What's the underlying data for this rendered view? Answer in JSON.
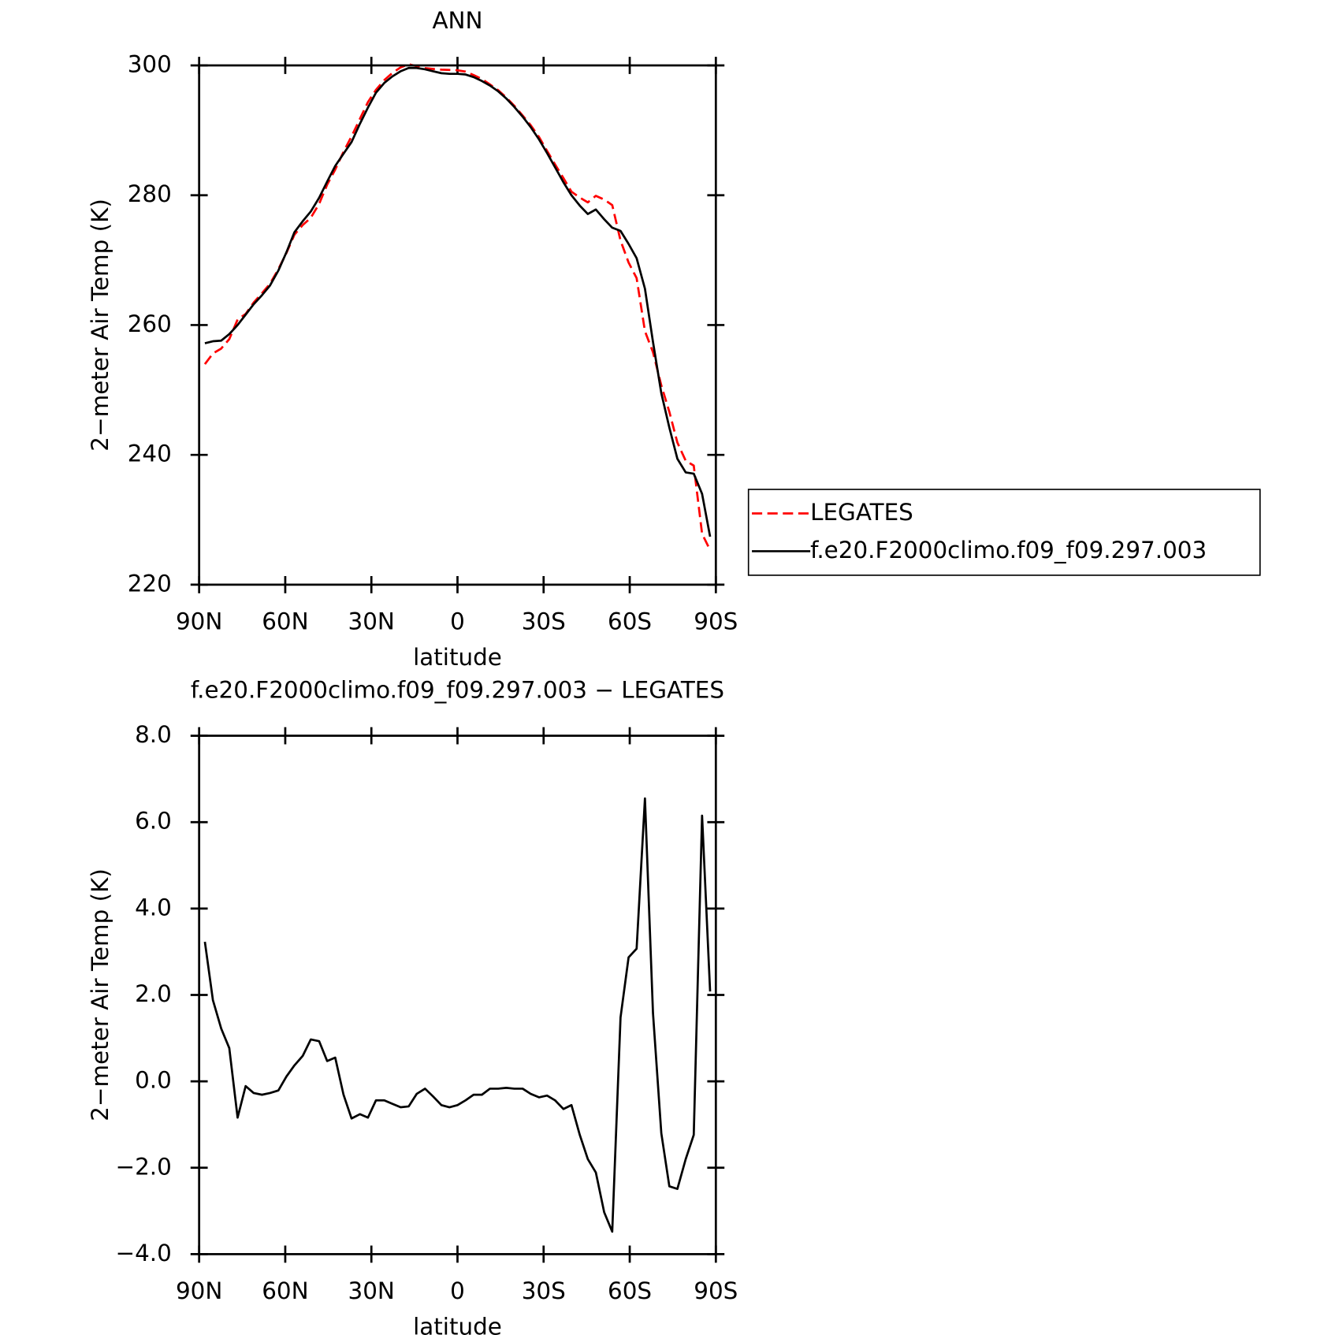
{
  "chart_data": [
    {
      "type": "line",
      "title": "ANN",
      "x_label": "latitude",
      "y_label": "2−meter Air Temp (K)",
      "x": [
        88.0,
        85.2,
        82.3,
        79.5,
        76.6,
        73.8,
        71.0,
        68.1,
        65.3,
        62.4,
        59.6,
        56.8,
        53.9,
        51.1,
        48.2,
        45.4,
        42.6,
        39.7,
        36.9,
        34.0,
        31.2,
        28.4,
        25.5,
        22.7,
        19.8,
        17.0,
        14.2,
        11.3,
        8.5,
        5.6,
        2.8,
        0.0,
        -2.8,
        -5.6,
        -8.5,
        -11.3,
        -14.2,
        -17.0,
        -19.8,
        -22.7,
        -25.5,
        -28.4,
        -31.2,
        -34.0,
        -36.9,
        -39.7,
        -42.6,
        -45.4,
        -48.2,
        -51.1,
        -53.9,
        -56.8,
        -59.6,
        -62.4,
        -65.3,
        -68.1,
        -71.0,
        -73.8,
        -76.6,
        -79.5,
        -82.3,
        -85.2,
        -88.0
      ],
      "series": [
        {
          "name": "LEGATES",
          "color": "#ff0000",
          "style": "dashed",
          "values": [
            253.97,
            255.62,
            256.38,
            257.83,
            260.84,
            261.71,
            263.47,
            264.91,
            266.37,
            268.61,
            271.09,
            273.93,
            275.41,
            276.53,
            278.67,
            281.63,
            283.95,
            286.71,
            289.06,
            291.76,
            294.34,
            296.24,
            297.74,
            298.82,
            299.7,
            300.18,
            299.89,
            299.57,
            299.45,
            299.35,
            299.3,
            299.25,
            299.04,
            298.51,
            297.91,
            297.07,
            296.17,
            295.05,
            293.77,
            292.27,
            290.79,
            288.97,
            286.83,
            284.74,
            282.64,
            280.55,
            279.64,
            278.9,
            279.91,
            279.33,
            278.48,
            273.02,
            269.63,
            267.23,
            259.05,
            255.82,
            250.7,
            246.63,
            241.89,
            239.1,
            238.34,
            227.85,
            225.32
          ]
        },
        {
          "name": "f.e20.F2000climo.f09_f09.297.003",
          "color": "#000000",
          "style": "solid",
          "values": [
            257.2,
            257.5,
            257.6,
            258.6,
            260.0,
            261.6,
            263.2,
            264.6,
            266.1,
            268.4,
            271.2,
            274.3,
            276.0,
            277.5,
            279.6,
            282.1,
            284.5,
            286.4,
            288.2,
            291.0,
            293.5,
            295.8,
            297.3,
            298.3,
            299.1,
            299.6,
            299.6,
            299.4,
            299.1,
            298.8,
            298.7,
            298.7,
            298.6,
            298.2,
            297.6,
            296.9,
            296.0,
            294.9,
            293.6,
            292.1,
            290.5,
            288.6,
            286.5,
            284.3,
            282.0,
            280.0,
            278.4,
            277.1,
            277.8,
            276.3,
            275.0,
            274.5,
            272.5,
            270.3,
            265.6,
            257.4,
            249.5,
            244.2,
            239.4,
            237.3,
            237.1,
            234.0,
            227.4
          ]
        }
      ],
      "xlim": [
        90,
        -90
      ],
      "xticks": [
        {
          "value": 90,
          "label": "90N"
        },
        {
          "value": 60,
          "label": "60N"
        },
        {
          "value": 30,
          "label": "30N"
        },
        0,
        {
          "value": -30,
          "label": "30S"
        },
        {
          "value": -60,
          "label": "60S"
        },
        {
          "value": -90,
          "label": "90S"
        }
      ],
      "ylim": [
        220,
        300
      ],
      "yticks": [
        220,
        240,
        260,
        280,
        300
      ],
      "legend": "right"
    },
    {
      "type": "line",
      "title": "f.e20.F2000climo.f09_f09.297.003 − LEGATES",
      "x_label": "latitude",
      "y_label": "2−meter Air Temp (K)",
      "x": [
        88.0,
        85.2,
        82.3,
        79.5,
        76.6,
        73.8,
        71.0,
        68.1,
        65.3,
        62.4,
        59.6,
        56.8,
        53.9,
        51.1,
        48.2,
        45.4,
        42.6,
        39.7,
        36.9,
        34.0,
        31.2,
        28.4,
        25.5,
        22.7,
        19.8,
        17.0,
        14.2,
        11.3,
        8.5,
        5.6,
        2.8,
        0.0,
        -2.8,
        -5.6,
        -8.5,
        -11.3,
        -14.2,
        -17.0,
        -19.8,
        -22.7,
        -25.5,
        -28.4,
        -31.2,
        -34.0,
        -36.9,
        -39.7,
        -42.6,
        -45.4,
        -48.2,
        -51.1,
        -53.9,
        -56.8,
        -59.6,
        -62.4,
        -65.3,
        -68.1,
        -71.0,
        -73.8,
        -76.6,
        -79.5,
        -82.3,
        -85.2,
        -88.0
      ],
      "series": [
        {
          "color": "#000000",
          "style": "solid",
          "values": [
            3.23,
            1.88,
            1.22,
            0.77,
            -0.84,
            -0.11,
            -0.27,
            -0.31,
            -0.27,
            -0.21,
            0.11,
            0.37,
            0.59,
            0.97,
            0.93,
            0.47,
            0.55,
            -0.31,
            -0.86,
            -0.76,
            -0.84,
            -0.44,
            -0.44,
            -0.52,
            -0.6,
            -0.58,
            -0.29,
            -0.17,
            -0.35,
            -0.55,
            -0.6,
            -0.55,
            -0.44,
            -0.31,
            -0.31,
            -0.17,
            -0.17,
            -0.15,
            -0.17,
            -0.17,
            -0.29,
            -0.37,
            -0.33,
            -0.44,
            -0.64,
            -0.55,
            -1.24,
            -1.8,
            -2.11,
            -3.03,
            -3.48,
            1.48,
            2.87,
            3.07,
            6.55,
            1.58,
            -1.2,
            -2.43,
            -2.49,
            -1.8,
            -1.24,
            6.15,
            2.08
          ]
        }
      ],
      "xlim": [
        90,
        -90
      ],
      "xticks": [
        {
          "value": 90,
          "label": "90N"
        },
        {
          "value": 60,
          "label": "60N"
        },
        {
          "value": 30,
          "label": "30N"
        },
        0,
        {
          "value": -30,
          "label": "30S"
        },
        {
          "value": -60,
          "label": "60S"
        },
        {
          "value": -90,
          "label": "90S"
        }
      ],
      "ylim": [
        -4,
        8
      ],
      "yticks": [
        {
          "value": -4,
          "label": "−4.0"
        },
        {
          "value": -2,
          "label": "−2.0"
        },
        {
          "value": 0,
          "label": "0.0"
        },
        {
          "value": 2,
          "label": "2.0"
        },
        {
          "value": 4,
          "label": "4.0"
        },
        {
          "value": 6,
          "label": "6.0"
        },
        {
          "value": 8,
          "label": "8.0"
        }
      ]
    }
  ]
}
